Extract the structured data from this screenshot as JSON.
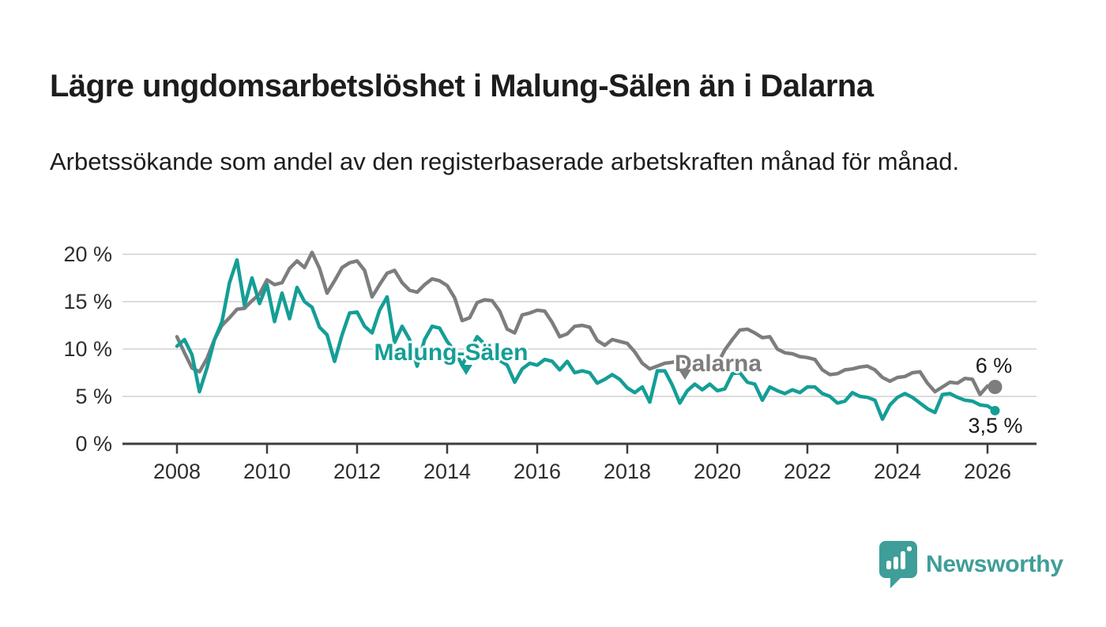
{
  "title": "Lägre ungdomsarbetslöshet i Malung-Sälen än i Dalarna",
  "subtitle": "Arbetssökande som andel av den registerbaserade arbetskraften månad för månad.",
  "branding": {
    "wordmark": "Newsworthy",
    "logo_icon": "speech-bubble-bar-chart",
    "brand_color": "#3f9e99"
  },
  "colors": {
    "malung_teal": "#149e96",
    "dalarna_gray": "#7d7d7d",
    "gridline": "#dcdcdc",
    "axis": "#3d3d3d",
    "text": "#1d1d1d",
    "tick_text": "#2e2e2e"
  },
  "chart_data": {
    "type": "line",
    "title": "Lägre ungdomsarbetslöshet i Malung-Sälen än i Dalarna",
    "subtitle": "Arbetssökande som andel av den registerbaserade arbetskraften månad för månad.",
    "unit": "%",
    "grid": true,
    "legend": "inline-labels",
    "x_start": 2008.0,
    "x_step_years": 0.166667,
    "x_axis": {
      "tick_years": [
        2008,
        2010,
        2012,
        2014,
        2016,
        2018,
        2020,
        2022,
        2024,
        2026
      ],
      "tick_labels": [
        "2008",
        "2010",
        "2012",
        "2014",
        "2016",
        "2018",
        "2020",
        "2022",
        "2024",
        "2026"
      ]
    },
    "y_axis": {
      "ticks": [
        0,
        5,
        10,
        15,
        20
      ],
      "tick_labels": [
        "0 %",
        "5 %",
        "10 %",
        "15 %",
        "20 %"
      ],
      "range": [
        0,
        21
      ]
    },
    "series": [
      {
        "name": "Malung-Sälen",
        "color": "#149e96",
        "end_value": 3.5,
        "end_label": "3,5 %",
        "end_dot_radius": 6,
        "values": [
          10.3,
          11.0,
          9.4,
          5.5,
          8.0,
          11.0,
          12.9,
          17.0,
          19.4,
          14.6,
          17.5,
          14.8,
          16.8,
          12.9,
          15.9,
          13.2,
          16.5,
          15.0,
          14.4,
          12.3,
          11.5,
          8.7,
          11.5,
          13.8,
          13.9,
          12.4,
          11.7,
          14.1,
          15.5,
          10.7,
          12.4,
          11.0,
          8.2,
          11.0,
          12.4,
          12.2,
          10.8,
          9.8,
          8.3,
          9.8,
          11.3,
          10.5,
          9.5,
          8.8,
          8.3,
          6.5,
          7.9,
          8.5,
          8.3,
          8.9,
          8.7,
          7.8,
          8.7,
          7.5,
          7.7,
          7.5,
          6.4,
          6.8,
          7.3,
          6.8,
          5.9,
          5.4,
          6.0,
          4.4,
          7.7,
          7.7,
          6.2,
          4.3,
          5.6,
          6.3,
          5.7,
          6.3,
          5.6,
          5.8,
          7.4,
          7.5,
          6.5,
          6.3,
          4.6,
          6.0,
          5.6,
          5.3,
          5.7,
          5.4,
          6.0,
          6.0,
          5.3,
          5.0,
          4.3,
          4.5,
          5.4,
          5.0,
          4.9,
          4.6,
          2.6,
          4.1,
          4.9,
          5.3,
          4.9,
          4.3,
          3.7,
          3.3,
          5.2,
          5.3,
          4.9,
          4.6,
          4.5,
          4.1,
          4.0,
          3.5
        ]
      },
      {
        "name": "Dalarna",
        "color": "#7d7d7d",
        "end_value": 6.0,
        "end_label": "6 %",
        "end_dot_radius": 9,
        "values": [
          11.3,
          9.6,
          8.0,
          7.6,
          9.0,
          11.0,
          12.5,
          13.3,
          14.2,
          14.3,
          15.1,
          15.8,
          17.3,
          16.8,
          17.0,
          18.5,
          19.3,
          18.6,
          20.2,
          18.5,
          15.9,
          17.2,
          18.6,
          19.1,
          19.3,
          18.3,
          15.5,
          16.8,
          18.0,
          18.3,
          17.0,
          16.2,
          16.0,
          16.8,
          17.4,
          17.2,
          16.7,
          15.4,
          13.0,
          13.3,
          14.9,
          15.2,
          15.1,
          14.0,
          12.1,
          11.7,
          13.6,
          13.8,
          14.1,
          14.0,
          12.8,
          11.3,
          11.6,
          12.4,
          12.5,
          12.3,
          10.9,
          10.4,
          11.0,
          10.8,
          10.6,
          9.7,
          8.5,
          7.9,
          8.2,
          8.5,
          8.6,
          8.8,
          8.5,
          8.3,
          8.3,
          8.1,
          8.4,
          9.9,
          11.0,
          12.0,
          12.1,
          11.7,
          11.2,
          11.3,
          10.0,
          9.6,
          9.5,
          9.2,
          9.1,
          8.9,
          7.8,
          7.3,
          7.4,
          7.8,
          7.9,
          8.1,
          8.2,
          7.8,
          7.0,
          6.6,
          7.0,
          7.1,
          7.5,
          7.6,
          6.4,
          5.5,
          6.0,
          6.5,
          6.4,
          6.9,
          6.8,
          5.2,
          6.1,
          6.0
        ]
      }
    ]
  }
}
